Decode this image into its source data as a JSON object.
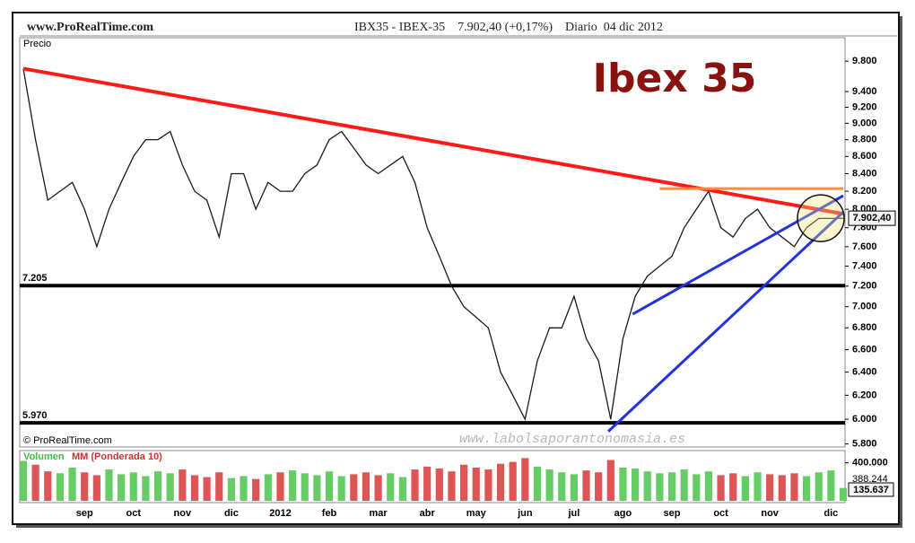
{
  "chart_data": {
    "type": "line",
    "site": "www.ProRealTime.com",
    "header": "IBX35 - IBEX-35    7.902,40 (+0,17%)    Diario  04 dic 2012",
    "title": "Ibex 35",
    "y_label": "Precio",
    "copyright": "© ProRealTime.com",
    "watermark": "www.labolsaporantonomasia.es",
    "log_scale": true,
    "categories": [
      null,
      null,
      null,
      null,
      null,
      "sep",
      null,
      null,
      null,
      "oct",
      null,
      null,
      null,
      "nov",
      null,
      null,
      null,
      "dic",
      null,
      null,
      null,
      "2012",
      null,
      null,
      null,
      "feb",
      null,
      null,
      null,
      "mar",
      null,
      null,
      null,
      "abr",
      null,
      null,
      null,
      "may",
      null,
      null,
      null,
      "jun",
      null,
      null,
      null,
      "jul",
      null,
      null,
      null,
      "ago",
      null,
      null,
      null,
      "sep",
      null,
      null,
      null,
      "oct",
      null,
      null,
      null,
      "nov",
      null,
      null,
      null,
      null,
      "dic",
      null
    ],
    "series": [
      {
        "name": "IBEX-35",
        "color": "#1a1a1a",
        "values": [
          9700,
          8800,
          8100,
          8200,
          8300,
          8000,
          7600,
          8000,
          8300,
          8600,
          8800,
          8800,
          8900,
          8500,
          8200,
          8100,
          7700,
          8400,
          8400,
          8000,
          8300,
          8200,
          8200,
          8400,
          8500,
          8800,
          8900,
          8700,
          8500,
          8400,
          8500,
          8600,
          8300,
          7800,
          7500,
          7200,
          7000,
          6900,
          6800,
          6400,
          6200,
          6000,
          6500,
          6800,
          6800,
          7100,
          6700,
          6500,
          6000,
          6700,
          7100,
          7300,
          7400,
          7500,
          7800,
          8000,
          8200,
          7800,
          7700,
          7900,
          8000,
          7800,
          7700,
          7600,
          7800,
          7900,
          7900,
          7902.4
        ],
        "last_label": "7.902,40"
      }
    ],
    "ylim": [
      5776,
      10120
    ],
    "yticks": [
      {
        "value": 9800,
        "label": "9.800"
      },
      {
        "value": 9400,
        "label": "9.400"
      },
      {
        "value": 9200,
        "label": "9.200"
      },
      {
        "value": 9000,
        "label": "9.000"
      },
      {
        "value": 8800,
        "label": "8.800"
      },
      {
        "value": 8600,
        "label": "8.600"
      },
      {
        "value": 8400,
        "label": "8.400"
      },
      {
        "value": 8200,
        "label": "8.200"
      },
      {
        "value": 8000,
        "label": "8.000"
      },
      {
        "value": 7800,
        "label": "7.800"
      },
      {
        "value": 7600,
        "label": "7.600"
      },
      {
        "value": 7400,
        "label": "7.400"
      },
      {
        "value": 7200,
        "label": "7.200"
      },
      {
        "value": 7000,
        "label": "7.000"
      },
      {
        "value": 6800,
        "label": "6.800"
      },
      {
        "value": 6600,
        "label": "6.600"
      },
      {
        "value": 6400,
        "label": "6.400"
      },
      {
        "value": 6200,
        "label": "6.200"
      },
      {
        "value": 6000,
        "label": "6.000"
      },
      {
        "value": 5800,
        "label": "5.800"
      }
    ],
    "levels": [
      {
        "value": 7205,
        "label": "7.205",
        "color": "#000000"
      },
      {
        "value": 5970,
        "label": "5.970",
        "color": "#000000"
      }
    ],
    "trend_lines": [
      {
        "color": "#ff1a1a",
        "x": [
          0,
          67
        ],
        "y": [
          9700,
          7950
        ]
      },
      {
        "color": "#ff8c40",
        "x": [
          52,
          67
        ],
        "y": [
          8230,
          8230
        ]
      },
      {
        "color": "#2233dd",
        "x": [
          49.8,
          67
        ],
        "y": [
          6930,
          8150
        ]
      },
      {
        "color": "#2233dd",
        "x": [
          47.8,
          67
        ],
        "y": [
          5900,
          7970
        ]
      }
    ],
    "volume": {
      "title": "Volumen",
      "ma_title": "MM (Ponderada 10)",
      "ylim": [
        0,
        520000
      ],
      "yticks": [
        {
          "value": 400000,
          "label": "400.000"
        }
      ],
      "ma_label": "388.244",
      "last_label": "135.637",
      "values": [
        420000,
        380000,
        310000,
        290000,
        350000,
        300000,
        270000,
        330000,
        280000,
        300000,
        260000,
        310000,
        290000,
        330000,
        270000,
        250000,
        300000,
        240000,
        260000,
        230000,
        280000,
        300000,
        320000,
        290000,
        270000,
        310000,
        260000,
        280000,
        300000,
        270000,
        290000,
        250000,
        330000,
        360000,
        340000,
        310000,
        380000,
        350000,
        330000,
        390000,
        410000,
        450000,
        360000,
        330000,
        300000,
        280000,
        320000,
        300000,
        430000,
        350000,
        340000,
        310000,
        290000,
        300000,
        330000,
        280000,
        310000,
        270000,
        290000,
        260000,
        300000,
        280000,
        270000,
        290000,
        260000,
        300000,
        320000,
        135637
      ]
    }
  }
}
